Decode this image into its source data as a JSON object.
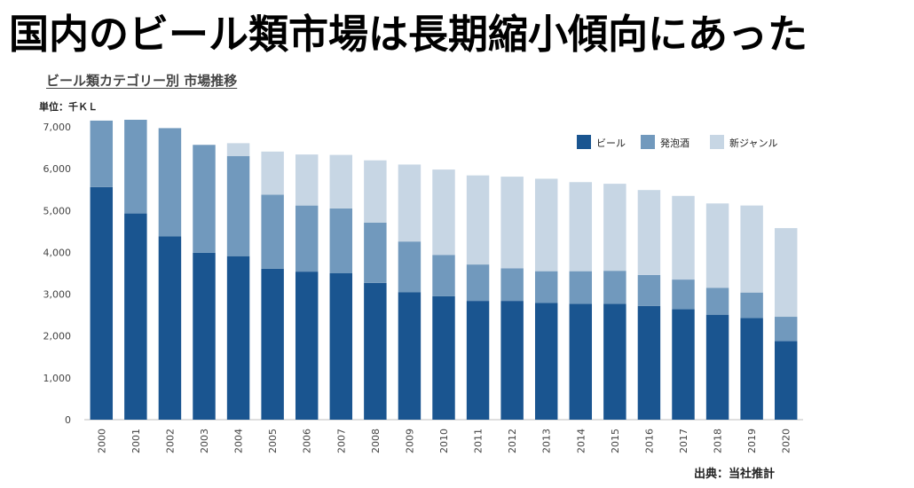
{
  "headline": "国内のビール類市場は長期縮小傾向にあった",
  "chart_data": {
    "type": "bar",
    "stacked": true,
    "title": "ビール類カテゴリー別 市場推移",
    "unit_label": "単位：千ＫＬ",
    "source": "出典：当社推計",
    "categories": [
      "2000",
      "2001",
      "2002",
      "2003",
      "2004",
      "2005",
      "2006",
      "2007",
      "2008",
      "2009",
      "2010",
      "2011",
      "2012",
      "2013",
      "2014",
      "2015",
      "2016",
      "2017",
      "2018",
      "2019",
      "2020"
    ],
    "series": [
      {
        "name": "ビール",
        "color": "#1a5590",
        "values": [
          5560,
          4930,
          4380,
          3990,
          3910,
          3610,
          3540,
          3500,
          3270,
          3050,
          2950,
          2840,
          2840,
          2790,
          2770,
          2770,
          2720,
          2640,
          2510,
          2430,
          1880
        ]
      },
      {
        "name": "発泡酒",
        "color": "#7199bd",
        "values": [
          1590,
          2240,
          2590,
          2580,
          2390,
          1770,
          1580,
          1550,
          1440,
          1210,
          990,
          870,
          780,
          760,
          780,
          790,
          740,
          710,
          640,
          610,
          580
        ]
      },
      {
        "name": "新ジャンル",
        "color": "#c7d6e4",
        "values": [
          0,
          0,
          0,
          0,
          310,
          1030,
          1220,
          1280,
          1490,
          1840,
          2040,
          2130,
          2190,
          2210,
          2130,
          2080,
          2030,
          2000,
          2020,
          2080,
          2120
        ]
      }
    ],
    "ylim": [
      0,
      7000
    ],
    "yticks": [
      "0",
      "1,000",
      "2,000",
      "3,000",
      "4,000",
      "5,000",
      "6,000",
      "7,000"
    ],
    "legend_position": "top-right",
    "grid": false
  }
}
